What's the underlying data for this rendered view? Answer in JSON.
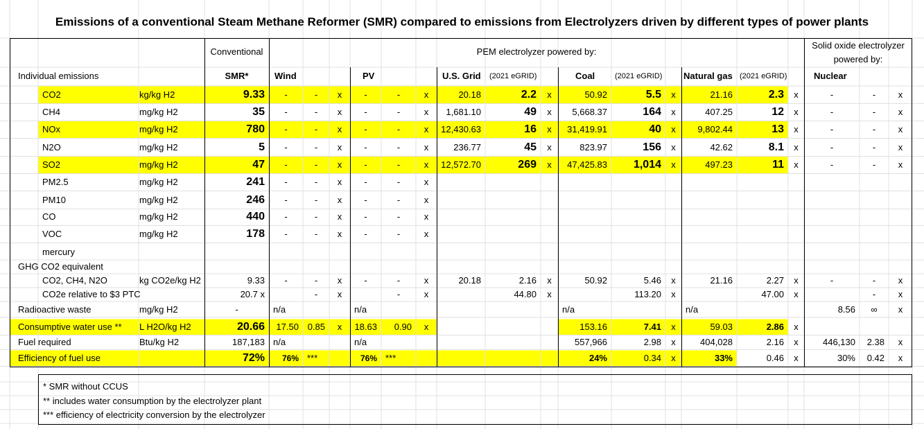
{
  "title": "Emissions of a conventional Steam Methane Reformer (SMR) compared to emissions from Electrolyzers driven by different types of power plants",
  "header": {
    "conventional": "Conventional",
    "pem": "PEM electrolyzer powered by:",
    "soe": "Solid oxide electrolyzer powered by:"
  },
  "section_label": "Individual emissions",
  "columns": [
    {
      "name": "SMR*"
    },
    {
      "name": "Wind"
    },
    {
      "name": "PV"
    },
    {
      "name": "U.S. Grid",
      "source": "(2021 eGRID)"
    },
    {
      "name": "Coal",
      "source": "(2021 eGRID)"
    },
    {
      "name": "Natural gas",
      "source": "(2021 eGRID)"
    },
    {
      "name": "Nuclear"
    }
  ],
  "rows": [
    {
      "label": "CO2",
      "unit": "kg/kg H2",
      "cells": [
        "9.33",
        "-",
        "-",
        "x",
        "-",
        "-",
        "x",
        "20.18",
        "2.2",
        "x",
        "50.92",
        "5.5",
        "x",
        "21.16",
        "2.3",
        "x",
        "-",
        "-",
        "x"
      ]
    },
    {
      "label": "CH4",
      "unit": "mg/kg H2",
      "cells": [
        "35",
        "-",
        "-",
        "x",
        "-",
        "-",
        "x",
        "1,681.10",
        "49",
        "x",
        "5,668.37",
        "164",
        "x",
        "407.25",
        "12",
        "x",
        "-",
        "-",
        "x"
      ]
    },
    {
      "label": "NOx",
      "unit": "mg/kg H2",
      "cells": [
        "780",
        "-",
        "-",
        "x",
        "-",
        "-",
        "x",
        "12,430.63",
        "16",
        "x",
        "31,419.91",
        "40",
        "x",
        "9,802.44",
        "13",
        "x",
        "-",
        "-",
        "x"
      ]
    },
    {
      "label": "N2O",
      "unit": "mg/kg H2",
      "cells": [
        "5",
        "-",
        "-",
        "x",
        "-",
        "-",
        "x",
        "236.77",
        "45",
        "x",
        "823.97",
        "156",
        "x",
        "42.62",
        "8.1",
        "x",
        "-",
        "-",
        "x"
      ]
    },
    {
      "label": "SO2",
      "unit": "mg/kg H2",
      "cells": [
        "47",
        "-",
        "-",
        "x",
        "-",
        "-",
        "x",
        "12,572.70",
        "269",
        "x",
        "47,425.83",
        "1,014",
        "x",
        "497.23",
        "11",
        "x",
        "-",
        "-",
        "x"
      ]
    },
    {
      "label": "PM2.5",
      "unit": "mg/kg H2",
      "cells": [
        "241",
        "-",
        "-",
        "x",
        "-",
        "-",
        "x"
      ]
    },
    {
      "label": "PM10",
      "unit": "mg/kg H2",
      "cells": [
        "246",
        "-",
        "-",
        "x",
        "-",
        "-",
        "x"
      ]
    },
    {
      "label": "CO",
      "unit": "mg/kg H2",
      "cells": [
        "440",
        "-",
        "-",
        "x",
        "-",
        "-",
        "x"
      ]
    },
    {
      "label": "VOC",
      "unit": "mg/kg H2",
      "cells": [
        "178",
        "-",
        "-",
        "x",
        "-",
        "-",
        "x"
      ]
    },
    {
      "label": "mercury"
    },
    {
      "label": "GHG CO2 equivalent"
    },
    {
      "label": "CO2, CH4, N2O",
      "unit": "kg CO2e/kg H2",
      "cells": [
        "9.33",
        "-",
        "-",
        "x",
        "-",
        "-",
        "x",
        "20.18",
        "2.16",
        "x",
        "50.92",
        "5.46",
        "x",
        "21.16",
        "2.27",
        "x",
        "-",
        "-",
        "x"
      ]
    },
    {
      "label": "CO2e relative to $3 PTC",
      "cells": [
        "20.7 x",
        null,
        "-",
        "x",
        null,
        "-",
        "x",
        null,
        "44.80",
        "x",
        null,
        "113.20",
        "x",
        null,
        "47.00",
        "x",
        null,
        "-",
        "x"
      ]
    },
    {
      "label": "Radioactive waste",
      "unit": "mg/kg H2",
      "cells": [
        "-",
        "n/a",
        null,
        null,
        "n/a",
        null,
        null,
        null,
        null,
        null,
        "n/a",
        null,
        null,
        "n/a",
        null,
        null,
        "8.56",
        "∞",
        "x"
      ]
    },
    {
      "label": "Consumptive water use **",
      "unit": "L H2O/kg H2",
      "cells": [
        "20.66",
        "17.50",
        "0.85",
        "x",
        "18.63",
        "0.90",
        "x",
        null,
        null,
        null,
        "153.16",
        "7.41",
        "x",
        "59.03",
        "2.86",
        "x"
      ]
    },
    {
      "label": "Fuel required",
      "unit": "Btu/kg H2",
      "cells": [
        "187,183",
        "n/a",
        null,
        null,
        "n/a",
        null,
        null,
        null,
        null,
        null,
        "557,966",
        "2.98",
        "x",
        "404,028",
        "2.16",
        "x",
        "446,130",
        "2.38",
        "x"
      ]
    },
    {
      "label": "Efficiency of fuel use",
      "cells": [
        "72%",
        "76%",
        "***",
        null,
        "76%",
        "***",
        null,
        null,
        null,
        null,
        "24%",
        "0.34",
        "x",
        "33%",
        "0.46",
        "x",
        "30%",
        "0.42",
        "x"
      ]
    }
  ],
  "footnotes": [
    "* SMR without CCUS",
    "** includes water consumption by the electrolyzer plant",
    "*** efficiency of electricity conversion by the electrolyzer"
  ]
}
